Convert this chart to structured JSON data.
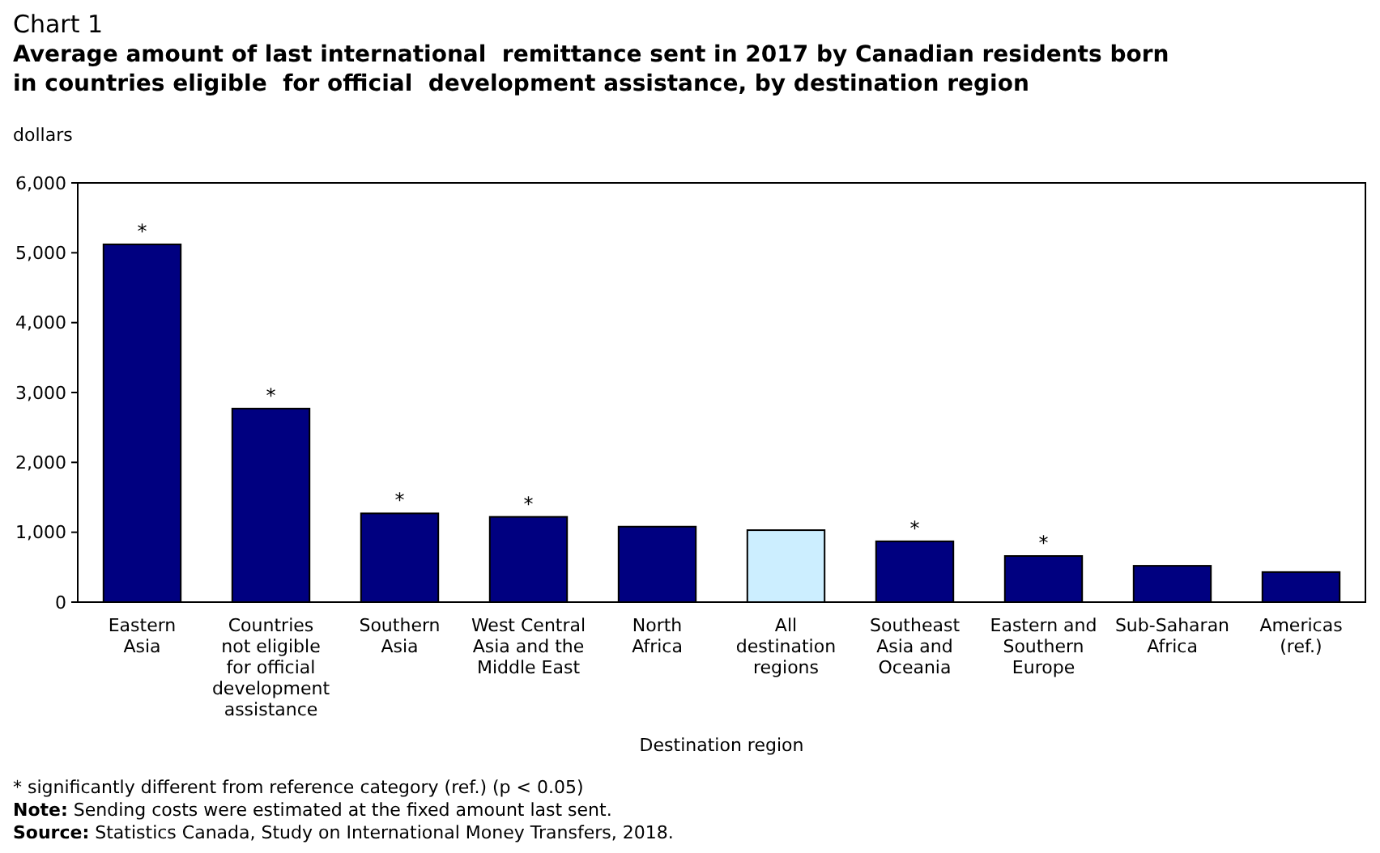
{
  "chart_data": {
    "type": "bar",
    "title": "Chart 1",
    "subtitle": "Average amount of last international  remittance sent in 2017 by Canadian residents born\nin countries eligible  for official  development assistance, by destination region",
    "ylabel": "dollars",
    "xlabel": "Destination region",
    "categories": [
      "Eastern\nAsia",
      "Countries\nnot eligible\nfor official\ndevelopment\nassistance",
      "Southern\nAsia",
      "West Central\nAsia and the\nMiddle East",
      "North\nAfrica",
      "All\ndestination\nregions",
      "Southeast\nAsia and\nOceania",
      "Eastern and\nSouthern\nEurope",
      "Sub-Saharan\nAfrica",
      "Americas\n(ref.)"
    ],
    "values": [
      5120,
      2770,
      1270,
      1220,
      1080,
      1030,
      870,
      660,
      520,
      430
    ],
    "colors": [
      "#000080",
      "#000080",
      "#000080",
      "#000080",
      "#000080",
      "#cceeff",
      "#000080",
      "#000080",
      "#000080",
      "#000080"
    ],
    "value_labels": [
      "*",
      "*",
      "*",
      "*",
      null,
      null,
      "*",
      "*",
      null,
      null
    ],
    "ylim": [
      0,
      6000
    ],
    "yticks": [
      {
        "value": 0,
        "label": "0"
      },
      {
        "value": 1000,
        "label": "1,000"
      },
      {
        "value": 2000,
        "label": "2,000"
      },
      {
        "value": 3000,
        "label": "3,000"
      },
      {
        "value": 4000,
        "label": "4,000"
      },
      {
        "value": 5000,
        "label": "5,000"
      },
      {
        "value": 6000,
        "label": "6,000"
      }
    ],
    "grid": false,
    "annotations": [
      "* significantly different from reference category (ref.) (p < 0.05)",
      "Note: Sending costs were estimated at the fixed amount last sent.",
      "Source: Statistics Canada, Study on International Money Transfers, 2018."
    ]
  }
}
